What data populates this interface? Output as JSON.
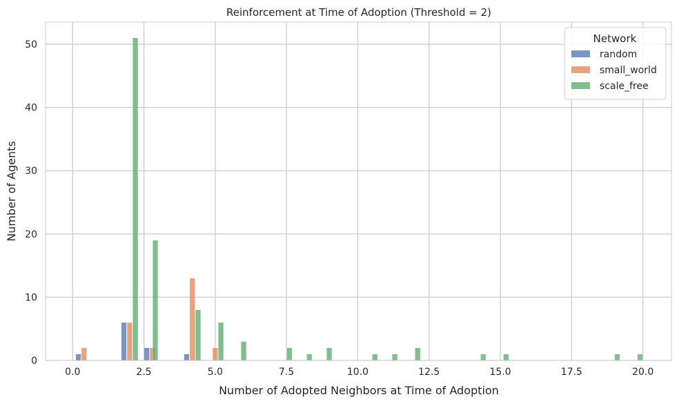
{
  "chart_data": {
    "type": "bar",
    "title": "Reinforcement at Time of Adoption (Threshold = 2)",
    "xlabel": "Number of Adopted Neighbors at Time of Adoption",
    "ylabel": "Number of Agents",
    "xlim": [
      -0.95,
      21.0
    ],
    "ylim": [
      0,
      53.5
    ],
    "xticks": [
      0.0,
      2.5,
      5.0,
      7.5,
      10.0,
      12.5,
      15.0,
      17.5,
      20.0
    ],
    "xtick_labels": [
      "0.0",
      "2.5",
      "5.0",
      "7.5",
      "10.0",
      "12.5",
      "15.0",
      "17.5",
      "20.0"
    ],
    "yticks": [
      0,
      10,
      20,
      30,
      40,
      50
    ],
    "ytick_labels": [
      "0",
      "10",
      "20",
      "30",
      "40",
      "50"
    ],
    "grid": true,
    "legend": {
      "title": "Network",
      "placement": "top-right"
    },
    "series": [
      {
        "name": "random",
        "color": "#4c72b0",
        "points": [
          {
            "x": 0.2,
            "y": 1
          },
          {
            "x": 1.8,
            "y": 6
          },
          {
            "x": 2.6,
            "y": 2
          },
          {
            "x": 4.0,
            "y": 1
          }
        ]
      },
      {
        "name": "small_world",
        "color": "#dd8452",
        "points": [
          {
            "x": 0.4,
            "y": 2
          },
          {
            "x": 2.0,
            "y": 6
          },
          {
            "x": 2.8,
            "y": 2
          },
          {
            "x": 4.2,
            "y": 13
          },
          {
            "x": 5.0,
            "y": 2
          }
        ]
      },
      {
        "name": "scale_free",
        "color": "#55a868",
        "points": [
          {
            "x": 2.2,
            "y": 51
          },
          {
            "x": 2.9,
            "y": 19
          },
          {
            "x": 4.4,
            "y": 8
          },
          {
            "x": 5.2,
            "y": 6
          },
          {
            "x": 6.0,
            "y": 3
          },
          {
            "x": 7.6,
            "y": 2
          },
          {
            "x": 8.3,
            "y": 1
          },
          {
            "x": 9.0,
            "y": 2
          },
          {
            "x": 10.6,
            "y": 1
          },
          {
            "x": 11.3,
            "y": 1
          },
          {
            "x": 12.1,
            "y": 2
          },
          {
            "x": 14.4,
            "y": 1
          },
          {
            "x": 15.2,
            "y": 1
          },
          {
            "x": 19.1,
            "y": 1
          },
          {
            "x": 19.9,
            "y": 1
          }
        ]
      }
    ]
  }
}
